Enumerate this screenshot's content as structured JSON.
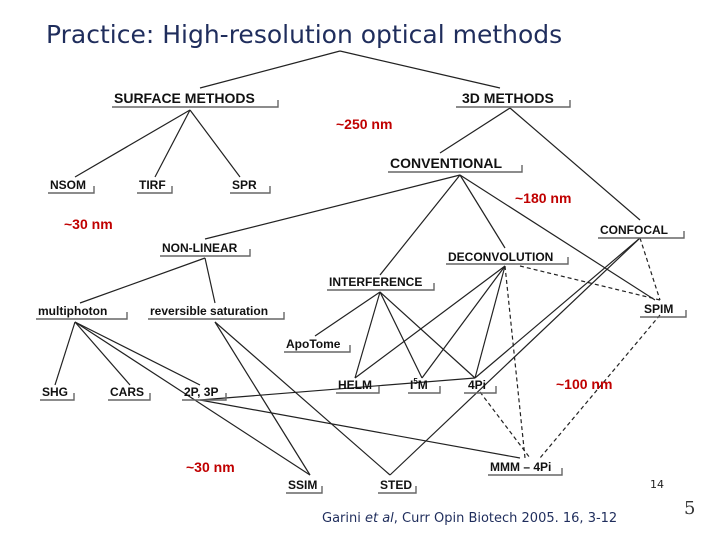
{
  "title": "Practice: High-resolution optical methods",
  "nodes": {
    "surface": "SURFACE METHODS",
    "methods3d": "3D METHODS",
    "nsom": "NSOM",
    "tirf": "TIRF",
    "spr": "SPR",
    "conventional": "CONVENTIONAL",
    "nonlinear": "NON-LINEAR",
    "confocal": "CONFOCAL",
    "deconvolution": "DECONVOLUTION",
    "interference": "INTERFERENCE",
    "multiphoton": "multiphoton",
    "revsat": "reversible saturation",
    "spim": "SPIM",
    "apotome": "ApoTome",
    "shg": "SHG",
    "cars": "CARS",
    "twop": "2P, 3P",
    "helm": "HELM",
    "i5m_base": "I",
    "i5m_sup": "5",
    "i5m_end": "M",
    "fourpi": "4Pi",
    "mmm": "MMM – 4Pi",
    "ssim": "SSIM",
    "sted": "STED"
  },
  "resolutions": {
    "r250": "~250 nm",
    "r180": "~180 nm",
    "r30a": "~30 nm",
    "r100": "~100 nm",
    "r30b": "~30 nm"
  },
  "page_number": "14",
  "citation": {
    "author": "Garini ",
    "etal": "et al",
    "rest": ", Curr Opin Biotech 2005. 16, 3-12"
  },
  "slide_mark": "5"
}
